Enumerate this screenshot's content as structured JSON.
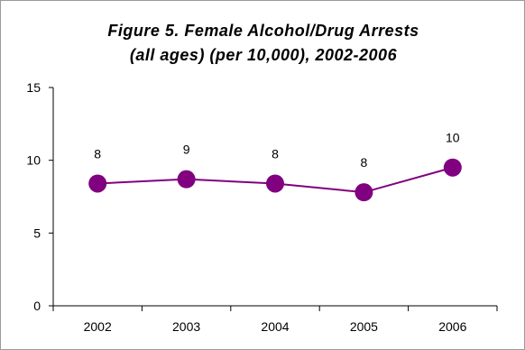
{
  "chart_data": {
    "type": "line",
    "title_lines": [
      "Figure 5. Female Alcohol/Drug Arrests",
      "(all ages) (per 10,000), 2002-2006"
    ],
    "xlabel": "",
    "ylabel": "",
    "categories": [
      "2002",
      "2003",
      "2004",
      "2005",
      "2006"
    ],
    "series": [
      {
        "values": [
          8.4,
          8.7,
          8.4,
          7.8,
          9.5
        ],
        "data_labels": [
          "8",
          "9",
          "8",
          "8",
          "10"
        ]
      }
    ],
    "ylim": [
      0,
      15
    ],
    "yticks": [
      "0",
      "5",
      "10",
      "15"
    ],
    "grid": false,
    "legend": "none",
    "colors": {
      "series": "#800080",
      "axis": "#000000",
      "frame": "#9a9a9a"
    }
  }
}
